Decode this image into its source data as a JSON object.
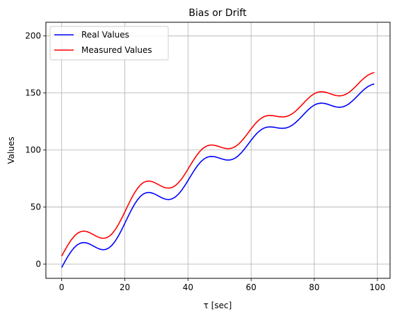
{
  "chart_data": {
    "type": "line",
    "title": "Bias or Drift",
    "xlabel": "τ [sec]",
    "ylabel": "Values",
    "xlim": [
      -5,
      104
    ],
    "ylim": [
      -12.5,
      212
    ],
    "xticks": [
      0,
      20,
      40,
      60,
      80,
      100
    ],
    "yticks": [
      0,
      50,
      100,
      150,
      200
    ],
    "grid": true,
    "legend_position": "upper-left",
    "x": [
      0,
      1,
      2,
      3,
      4,
      5,
      6,
      7,
      8,
      9,
      10,
      11,
      12,
      13,
      14,
      15,
      16,
      17,
      18,
      19,
      20,
      21,
      22,
      23,
      24,
      25,
      26,
      27,
      28,
      29,
      30,
      31,
      32,
      33,
      34,
      35,
      36,
      37,
      38,
      39,
      40,
      41,
      42,
      43,
      44,
      45,
      46,
      47,
      48,
      49,
      50,
      51,
      52,
      53,
      54,
      55,
      56,
      57,
      58,
      59,
      60,
      61,
      62,
      63,
      64,
      65,
      66,
      67,
      68,
      69,
      70,
      71,
      72,
      73,
      74,
      75,
      76,
      77,
      78,
      79,
      80,
      81,
      82,
      83,
      84,
      85,
      86,
      87,
      88,
      89,
      90,
      91,
      92,
      93,
      94,
      95,
      96,
      97,
      98,
      99
    ],
    "series": [
      {
        "name": "Real Values",
        "color": "#0000ff",
        "values": [
          -3.0,
          2.09,
          6.88,
          11.09,
          14.51,
          16.99,
          18.44,
          18.9,
          18.48,
          17.37,
          15.88,
          14.37,
          13.16,
          12.58,
          12.88,
          14.23,
          16.71,
          20.28,
          24.81,
          30.06,
          35.74,
          41.53,
          47.09,
          52.1,
          56.32,
          59.55,
          61.68,
          62.71,
          62.74,
          61.97,
          60.66,
          59.14,
          57.74,
          56.81,
          56.57,
          57.21,
          58.81,
          61.35,
          64.72,
          68.75,
          73.2,
          77.79,
          82.21,
          86.2,
          89.52,
          92.02,
          93.62,
          94.35,
          94.32,
          93.75,
          92.87,
          91.97,
          91.32,
          91.17,
          91.7,
          93.01,
          95.1,
          97.9,
          101.23,
          104.87,
          108.57,
          112.05,
          115.09,
          117.49,
          119.15,
          120.06,
          120.3,
          120.06,
          119.59,
          119.15,
          118.99,
          119.3,
          120.2,
          121.73,
          123.85,
          126.44,
          129.32,
          132.28,
          135.08,
          137.51,
          139.39,
          140.6,
          141.12,
          140.98,
          140.36,
          139.42,
          138.45,
          137.72,
          137.45,
          137.8,
          138.84,
          140.54,
          142.81,
          145.47,
          148.31,
          151.09,
          153.59,
          155.62,
          157.07,
          157.9
        ]
      },
      {
        "name": "Measured Values",
        "color": "#ff0000",
        "values": [
          7.0,
          12.09,
          16.88,
          21.09,
          24.51,
          26.99,
          28.44,
          28.9,
          28.48,
          27.37,
          25.88,
          24.37,
          23.16,
          22.58,
          22.88,
          24.23,
          26.71,
          30.28,
          34.81,
          40.06,
          45.74,
          51.53,
          57.09,
          62.1,
          66.32,
          69.55,
          71.68,
          72.71,
          72.74,
          71.97,
          70.66,
          69.14,
          67.74,
          66.81,
          66.57,
          67.21,
          68.81,
          71.35,
          74.72,
          78.75,
          83.2,
          87.79,
          92.21,
          96.2,
          99.52,
          102.02,
          103.62,
          104.35,
          104.32,
          103.75,
          102.87,
          101.97,
          101.32,
          101.17,
          101.7,
          103.01,
          105.1,
          107.9,
          111.23,
          114.87,
          118.57,
          122.05,
          125.09,
          127.49,
          129.15,
          130.06,
          130.3,
          130.06,
          129.59,
          129.15,
          128.99,
          129.3,
          130.2,
          131.73,
          133.85,
          136.44,
          139.32,
          142.28,
          145.08,
          147.51,
          149.39,
          150.6,
          151.12,
          150.98,
          150.36,
          149.42,
          148.45,
          147.72,
          147.45,
          147.8,
          148.84,
          150.54,
          152.81,
          155.47,
          158.31,
          161.09,
          163.59,
          165.62,
          167.07,
          167.9
        ]
      }
    ]
  }
}
